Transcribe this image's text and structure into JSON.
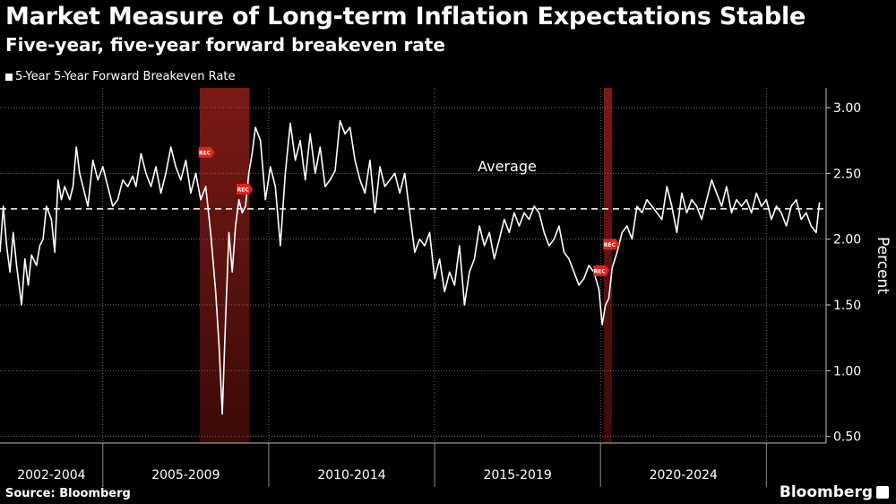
{
  "chart_data": {
    "type": "line",
    "title": "Market Measure of Long-term Inflation Expectations Stable",
    "subtitle": "Five-year, five-year forward breakeven rate",
    "ylabel": "Percent",
    "ylim": [
      0.45,
      3.15
    ],
    "yticks": [
      0.5,
      1.0,
      1.5,
      2.0,
      2.5,
      3.0
    ],
    "ytick_labels": [
      "0.50",
      "1.00",
      "1.50",
      "2.00",
      "2.50",
      "3.00"
    ],
    "x_periods": [
      {
        "label": "2002-2004",
        "start": 2001.9,
        "end": 2005.0
      },
      {
        "label": "2005-2009",
        "start": 2005.0,
        "end": 2010.0
      },
      {
        "label": "2010-2014",
        "start": 2010.0,
        "end": 2015.0
      },
      {
        "label": "2015-2019",
        "start": 2015.0,
        "end": 2020.0
      },
      {
        "label": "2020-2024",
        "start": 2020.0,
        "end": 2025.0
      }
    ],
    "xlim": [
      2001.9,
      2026.8
    ],
    "grid": true,
    "legend_position": "top-left",
    "recessions": [
      {
        "start": 2007.92,
        "end": 2009.42
      },
      {
        "start": 2020.1,
        "end": 2020.35
      }
    ],
    "recession_labels": [
      {
        "text": "REC",
        "x": 2008.1,
        "y": 2.66
      },
      {
        "text": "REC",
        "x": 2009.25,
        "y": 2.38
      },
      {
        "text": "REC",
        "x": 2020.0,
        "y": 1.76
      },
      {
        "text": "REC",
        "x": 2020.3,
        "y": 1.96
      }
    ],
    "average": {
      "label": "Average",
      "value": 2.23
    },
    "series": [
      {
        "name": "5-Year 5-Year Forward Breakeven Rate",
        "color": "#ffffff",
        "x": [
          2001.9,
          2002.0,
          2002.1,
          2002.2,
          2002.3,
          2002.4,
          2002.55,
          2002.65,
          2002.75,
          2002.85,
          2003.0,
          2003.1,
          2003.2,
          2003.3,
          2003.45,
          2003.55,
          2003.65,
          2003.75,
          2003.85,
          2004.0,
          2004.1,
          2004.2,
          2004.3,
          2004.45,
          2004.55,
          2004.7,
          2004.85,
          2005.0,
          2005.15,
          2005.3,
          2005.45,
          2005.6,
          2005.75,
          2005.9,
          2006.0,
          2006.15,
          2006.3,
          2006.45,
          2006.6,
          2006.75,
          2006.9,
          2007.05,
          2007.2,
          2007.35,
          2007.5,
          2007.65,
          2007.8,
          2007.95,
          2008.1,
          2008.25,
          2008.4,
          2008.5,
          2008.6,
          2008.7,
          2008.8,
          2008.9,
          2009.0,
          2009.1,
          2009.2,
          2009.3,
          2009.4,
          2009.5,
          2009.6,
          2009.75,
          2009.9,
          2010.05,
          2010.2,
          2010.35,
          2010.5,
          2010.65,
          2010.8,
          2010.95,
          2011.1,
          2011.25,
          2011.4,
          2011.55,
          2011.7,
          2011.85,
          2012.0,
          2012.15,
          2012.3,
          2012.45,
          2012.6,
          2012.75,
          2012.9,
          2013.05,
          2013.2,
          2013.35,
          2013.5,
          2013.65,
          2013.8,
          2013.95,
          2014.1,
          2014.25,
          2014.4,
          2014.55,
          2014.7,
          2014.85,
          2015.0,
          2015.15,
          2015.3,
          2015.45,
          2015.6,
          2015.75,
          2015.9,
          2016.05,
          2016.2,
          2016.35,
          2016.5,
          2016.65,
          2016.8,
          2016.95,
          2017.1,
          2017.25,
          2017.4,
          2017.55,
          2017.7,
          2017.85,
          2018.0,
          2018.15,
          2018.3,
          2018.45,
          2018.6,
          2018.75,
          2018.9,
          2019.05,
          2019.2,
          2019.35,
          2019.5,
          2019.65,
          2019.8,
          2019.95,
          2020.05,
          2020.15,
          2020.25,
          2020.35,
          2020.5,
          2020.65,
          2020.8,
          2020.95,
          2021.1,
          2021.25,
          2021.4,
          2021.55,
          2021.7,
          2021.85,
          2022.0,
          2022.15,
          2022.3,
          2022.45,
          2022.6,
          2022.75,
          2022.9,
          2023.05,
          2023.2,
          2023.35,
          2023.5,
          2023.65,
          2023.8,
          2023.95,
          2024.1,
          2024.25,
          2024.4,
          2024.55,
          2024.7,
          2024.85,
          2025.0,
          2025.15,
          2025.3,
          2025.45,
          2025.6,
          2025.75,
          2025.9,
          2026.05,
          2026.2,
          2026.35,
          2026.5,
          2026.6
        ],
        "y": [
          1.9,
          2.25,
          1.95,
          1.75,
          2.05,
          1.8,
          1.5,
          1.85,
          1.65,
          1.88,
          1.8,
          1.95,
          2.0,
          2.25,
          2.15,
          1.9,
          2.45,
          2.3,
          2.4,
          2.3,
          2.4,
          2.7,
          2.5,
          2.35,
          2.25,
          2.6,
          2.45,
          2.55,
          2.4,
          2.25,
          2.3,
          2.45,
          2.4,
          2.48,
          2.4,
          2.65,
          2.5,
          2.4,
          2.55,
          2.35,
          2.5,
          2.7,
          2.55,
          2.45,
          2.6,
          2.35,
          2.5,
          2.3,
          2.4,
          2.05,
          1.6,
          1.2,
          0.67,
          1.4,
          2.05,
          1.75,
          2.1,
          2.3,
          2.2,
          2.25,
          2.5,
          2.65,
          2.85,
          2.75,
          2.3,
          2.55,
          2.4,
          1.95,
          2.5,
          2.88,
          2.6,
          2.75,
          2.45,
          2.8,
          2.5,
          2.7,
          2.4,
          2.45,
          2.52,
          2.9,
          2.8,
          2.85,
          2.6,
          2.45,
          2.35,
          2.6,
          2.2,
          2.55,
          2.4,
          2.45,
          2.5,
          2.35,
          2.5,
          2.2,
          1.9,
          2.0,
          1.95,
          2.05,
          1.7,
          1.85,
          1.6,
          1.75,
          1.65,
          1.95,
          1.5,
          1.75,
          1.85,
          2.1,
          1.95,
          2.05,
          1.85,
          2.0,
          2.15,
          2.05,
          2.2,
          2.1,
          2.2,
          2.15,
          2.25,
          2.2,
          2.05,
          1.95,
          2.0,
          2.1,
          1.9,
          1.85,
          1.75,
          1.65,
          1.7,
          1.8,
          1.75,
          1.62,
          1.35,
          1.5,
          1.55,
          1.78,
          1.9,
          2.05,
          2.1,
          2.0,
          2.25,
          2.2,
          2.3,
          2.25,
          2.2,
          2.15,
          2.4,
          2.25,
          2.05,
          2.35,
          2.2,
          2.3,
          2.25,
          2.15,
          2.3,
          2.45,
          2.35,
          2.25,
          2.4,
          2.2,
          2.3,
          2.25,
          2.3,
          2.2,
          2.35,
          2.25,
          2.3,
          2.15,
          2.25,
          2.2,
          2.1,
          2.25,
          2.3,
          2.15,
          2.2,
          2.1,
          2.05,
          2.28
        ]
      }
    ]
  },
  "footer": {
    "source": "Source: Bloomberg",
    "brand": "Bloomberg"
  }
}
